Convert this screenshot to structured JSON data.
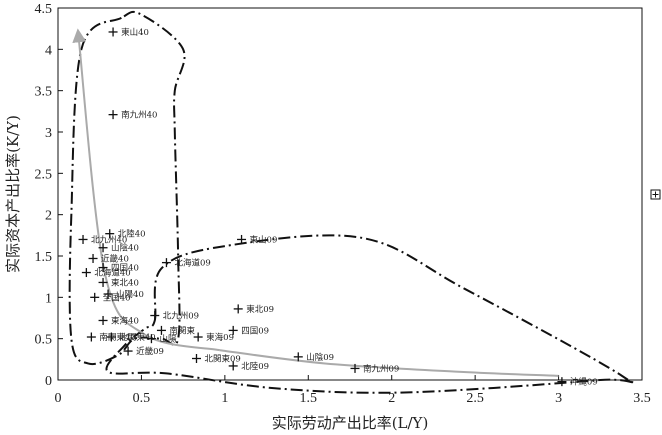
{
  "chart_data": {
    "type": "scatter",
    "xlabel": "实际劳动产出比率(L/Y)",
    "ylabel": "实际资本产出比率(K/Y)",
    "xlim": [
      0,
      3.5
    ],
    "ylim": [
      0,
      4.5
    ],
    "xticks": [
      "0",
      "0.5",
      "1",
      "1.5",
      "2",
      "2.5",
      "3",
      "3.5"
    ],
    "yticks": [
      "0",
      "0.5",
      "1",
      "1.5",
      "2",
      "2.5",
      "3",
      "3.5",
      "4",
      "4.5"
    ],
    "grid": false,
    "legend_position": "right",
    "legend_symbol": "+",
    "points": [
      {
        "label": "東山40",
        "x": 0.33,
        "y": 4.21
      },
      {
        "label": "南九州40",
        "x": 0.33,
        "y": 3.21
      },
      {
        "label": "北陸40",
        "x": 0.31,
        "y": 1.77
      },
      {
        "label": "北九州40",
        "x": 0.15,
        "y": 1.7
      },
      {
        "label": "山陰40",
        "x": 0.27,
        "y": 1.6
      },
      {
        "label": "近畿40",
        "x": 0.21,
        "y": 1.47
      },
      {
        "label": "四国40",
        "x": 0.27,
        "y": 1.36
      },
      {
        "label": "北海道40",
        "x": 0.17,
        "y": 1.3
      },
      {
        "label": "東北40",
        "x": 0.27,
        "y": 1.18
      },
      {
        "label": "山陽40",
        "x": 0.3,
        "y": 1.04
      },
      {
        "label": "全国40",
        "x": 0.22,
        "y": 1.0
      },
      {
        "label": "東海40",
        "x": 0.27,
        "y": 0.72
      },
      {
        "label": "南関東40",
        "x": 0.2,
        "y": 0.52
      },
      {
        "label": "北関東40",
        "x": 0.32,
        "y": 0.52
      },
      {
        "label": "東山09",
        "x": 1.1,
        "y": 1.7
      },
      {
        "label": "北海道09",
        "x": 0.65,
        "y": 1.42
      },
      {
        "label": "東北09",
        "x": 1.08,
        "y": 0.86
      },
      {
        "label": "北九州09",
        "x": 0.58,
        "y": 0.78
      },
      {
        "label": "四国09",
        "x": 1.05,
        "y": 0.6
      },
      {
        "label": "南関東",
        "x": 0.62,
        "y": 0.6
      },
      {
        "label": "東海09",
        "x": 0.84,
        "y": 0.52
      },
      {
        "label": "山陽",
        "x": 0.56,
        "y": 0.5
      },
      {
        "label": "近畿09",
        "x": 0.42,
        "y": 0.35
      },
      {
        "label": "北関東09",
        "x": 0.83,
        "y": 0.26
      },
      {
        "label": "北陸09",
        "x": 1.05,
        "y": 0.17
      },
      {
        "label": "山陰09",
        "x": 1.44,
        "y": 0.28
      },
      {
        "label": "南九州09",
        "x": 1.78,
        "y": 0.14
      },
      {
        "label": "沖縄09",
        "x": 3.02,
        "y": -0.02
      }
    ],
    "arrow_path": [
      [
        0.97,
        0.36
      ],
      [
        0.52,
        0.55
      ],
      [
        0.28,
        1.3
      ],
      [
        0.12,
        4.22
      ]
    ],
    "arrow_path_2": [
      [
        0.97,
        0.36
      ],
      [
        1.6,
        0.2
      ],
      [
        2.4,
        0.1
      ],
      [
        3.0,
        0.05
      ]
    ],
    "cluster_1940_outline": [
      [
        0.38,
        4.38
      ],
      [
        0.14,
        4.0
      ],
      [
        0.08,
        2.0
      ],
      [
        0.08,
        0.5
      ],
      [
        0.18,
        0.2
      ],
      [
        0.36,
        0.3
      ],
      [
        0.46,
        0.5
      ],
      [
        0.62,
        0.5
      ],
      [
        0.72,
        0.5
      ],
      [
        0.72,
        1.5
      ],
      [
        0.7,
        3.0
      ],
      [
        0.7,
        3.5
      ],
      [
        0.75,
        4.0
      ],
      [
        0.5,
        4.42
      ]
    ],
    "cluster_2009_outline": [
      [
        0.58,
        0.72
      ],
      [
        0.62,
        1.35
      ],
      [
        1.0,
        1.62
      ],
      [
        1.82,
        1.72
      ],
      [
        2.44,
        1.1
      ],
      [
        3.38,
        0.05
      ],
      [
        3.25,
        0.0
      ],
      [
        2.1,
        -0.15
      ],
      [
        1.3,
        -0.1
      ],
      [
        0.65,
        0.08
      ],
      [
        0.3,
        0.1
      ],
      [
        0.4,
        0.42
      ],
      [
        0.52,
        0.62
      ]
    ]
  }
}
